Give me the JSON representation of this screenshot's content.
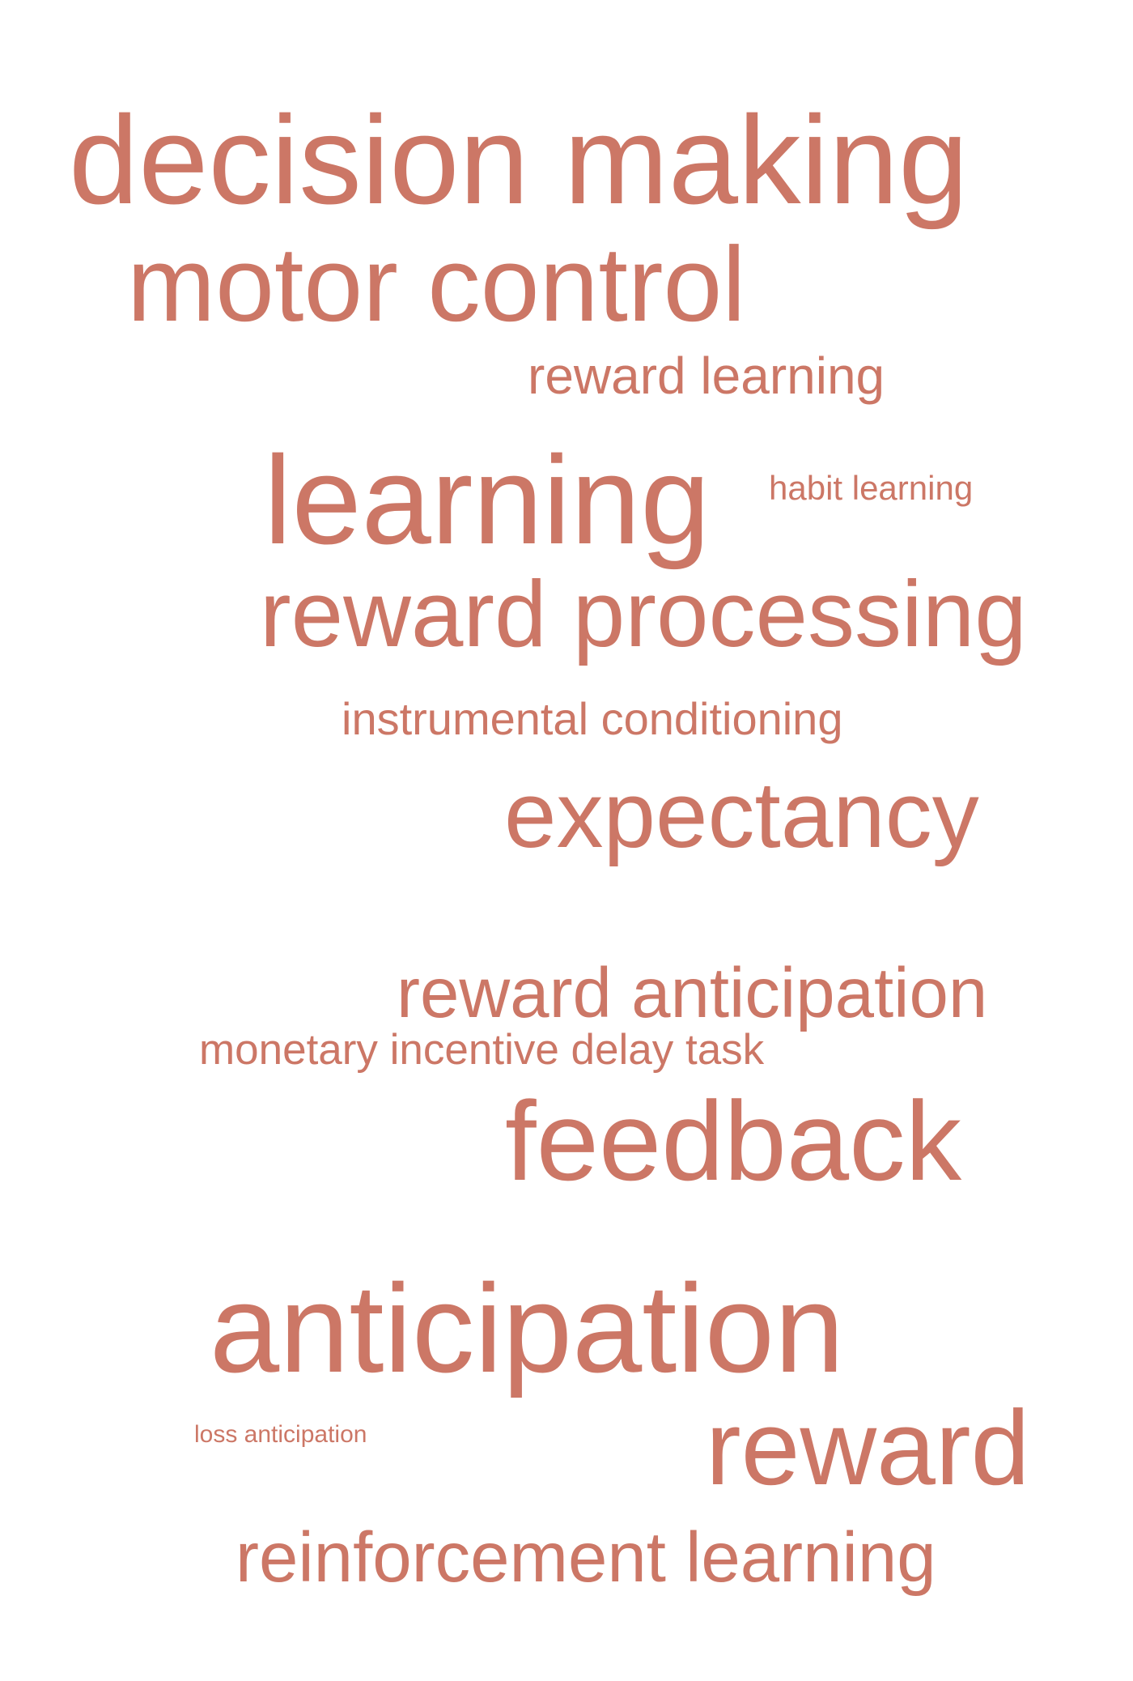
{
  "word_color": "#cc7766",
  "background_color": "#ffffff",
  "words": {
    "decision_making": "decision making",
    "motor_control": "motor control",
    "reward_learning": "reward learning",
    "learning": "learning",
    "habit_learning": "habit learning",
    "reward_processing": "reward processing",
    "instrumental_conditioning": "instrumental conditioning",
    "expectancy": "expectancy",
    "reward_anticipation": "reward anticipation",
    "monetary_incentive_delay_task": "monetary incentive delay task",
    "feedback": "feedback",
    "anticipation": "anticipation",
    "loss_anticipation": "loss anticipation",
    "reward": "reward",
    "reinforcement_learning": "reinforcement learning"
  }
}
